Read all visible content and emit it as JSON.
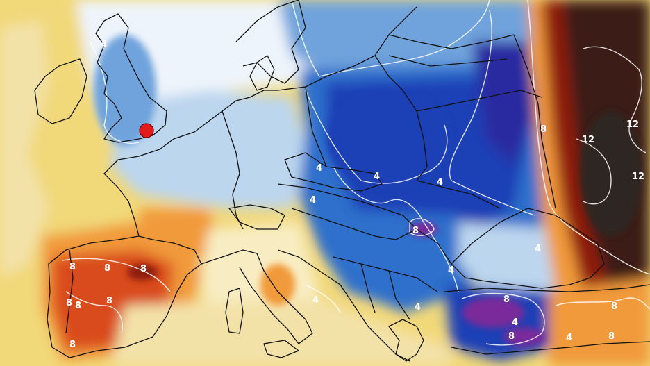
{
  "map": {
    "colors": {
      "ocean_warm": "#f1d879",
      "sand": "#f3e2a8",
      "pale_yellow": "#f8edc2",
      "very_light": "#eef4fb",
      "light_blue": "#bcd6ee",
      "mid_blue": "#6fa3dc",
      "blue": "#2f6fcc",
      "deep_blue": "#1d3fb5",
      "indigo": "#2a2aa0",
      "purple": "#7a2a9a",
      "orange": "#f19a3a",
      "red_orange": "#d94b1d",
      "dark_red": "#8e1c0c",
      "maroon": "#3a1b16",
      "dark_brown": "#2f2622",
      "marker_red": "#e11b1b"
    },
    "contour_labels": {
      "uk_4": "4",
      "spain_8a": "8",
      "spain_8b": "8",
      "spain_8c": "8",
      "spain_8d": "8",
      "spain_8e": "8",
      "spain_8f": "8",
      "spain_8g": "8",
      "central_4a": "4",
      "central_4b": "4",
      "central_4c": "4",
      "central_4d": "4",
      "balkan_8": "8",
      "balkan_4": "4",
      "adriatic_4": "4",
      "greece_4": "4",
      "turkey_8a": "8",
      "turkey_8b": "8",
      "turkey_4a": "4",
      "turkey_4b": "4",
      "east_8": "8",
      "east_12a": "12",
      "east_12b": "12",
      "east_12c": "12",
      "east_8b": "8",
      "east_8c": "8",
      "med_4": "4"
    },
    "location_marker": "london-marker"
  }
}
